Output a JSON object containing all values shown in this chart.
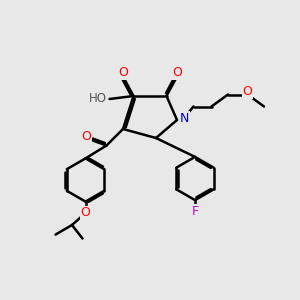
{
  "bg_color": "#e8e8e8",
  "bond_color": "#000000",
  "bond_width": 1.8,
  "atom_colors": {
    "O": "#ff0000",
    "N": "#0000cc",
    "F": "#cc00cc",
    "H": "#555555"
  },
  "figsize": [
    3.0,
    3.0
  ],
  "dpi": 100,
  "font_size": 9
}
